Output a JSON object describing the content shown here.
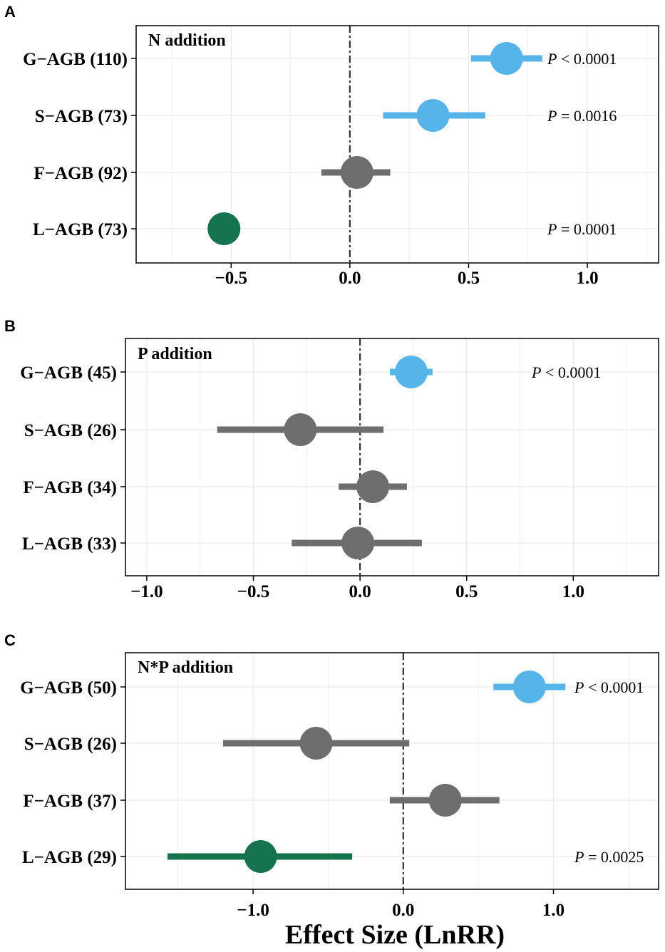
{
  "chart_data": [
    {
      "type": "forest",
      "panel_letter": "A",
      "title": "N addition",
      "xlim": [
        -0.9,
        1.3
      ],
      "xticks": [
        -0.5,
        0.0,
        0.5,
        1.0
      ],
      "xtick_labels": [
        "−0.5",
        "0.0",
        "0.5",
        "1.0"
      ],
      "reference_line": 0,
      "rows": [
        {
          "label": "G−AGB (110)",
          "est": 0.66,
          "lo": 0.51,
          "hi": 0.81,
          "color": "#56B4E9",
          "p_prefix": "P",
          "p_suffix": " < 0.0001"
        },
        {
          "label": "S−AGB (73)",
          "est": 0.35,
          "lo": 0.14,
          "hi": 0.57,
          "color": "#56B4E9",
          "p_prefix": "P",
          "p_suffix": " = 0.0016"
        },
        {
          "label": "F−AGB (92)",
          "est": 0.03,
          "lo": -0.12,
          "hi": 0.17,
          "color": "#6E6E6E",
          "p_prefix": "",
          "p_suffix": ""
        },
        {
          "label": "L−AGB (73)",
          "est": -0.53,
          "lo": -0.53,
          "hi": -0.53,
          "color": "#157350",
          "p_prefix": "P",
          "p_suffix": " = 0.0001"
        }
      ]
    },
    {
      "type": "forest",
      "panel_letter": "B",
      "title": "P addition",
      "xlim": [
        -1.1,
        1.4
      ],
      "xticks": [
        -1.0,
        -0.5,
        0.0,
        0.5,
        1.0
      ],
      "xtick_labels": [
        "−1.0",
        "−0.5",
        "0.0",
        "0.5",
        "1.0"
      ],
      "reference_line": 0,
      "rows": [
        {
          "label": "G−AGB (45)",
          "est": 0.24,
          "lo": 0.14,
          "hi": 0.34,
          "color": "#56B4E9",
          "p_prefix": "P",
          "p_suffix": " < 0.0001"
        },
        {
          "label": "S−AGB (26)",
          "est": -0.28,
          "lo": -0.67,
          "hi": 0.11,
          "color": "#6E6E6E",
          "p_prefix": "",
          "p_suffix": ""
        },
        {
          "label": "F−AGB (34)",
          "est": 0.06,
          "lo": -0.1,
          "hi": 0.22,
          "color": "#6E6E6E",
          "p_prefix": "",
          "p_suffix": ""
        },
        {
          "label": "L−AGB (33)",
          "est": -0.01,
          "lo": -0.32,
          "hi": 0.29,
          "color": "#6E6E6E",
          "p_prefix": "",
          "p_suffix": ""
        }
      ]
    },
    {
      "type": "forest",
      "panel_letter": "C",
      "title": "N*P addition",
      "xlim": [
        -1.85,
        1.7
      ],
      "xticks": [
        -1.0,
        0.0,
        1.0
      ],
      "xtick_labels": [
        "−1.0",
        "0.0",
        "1.0"
      ],
      "reference_line": 0,
      "xlabel": "Effect Size (LnRR)",
      "rows": [
        {
          "label": "G−AGB (50)",
          "est": 0.84,
          "lo": 0.6,
          "hi": 1.08,
          "color": "#56B4E9",
          "p_prefix": "P",
          "p_suffix": " < 0.0001"
        },
        {
          "label": "S−AGB (26)",
          "est": -0.58,
          "lo": -1.2,
          "hi": 0.04,
          "color": "#6E6E6E",
          "p_prefix": "",
          "p_suffix": ""
        },
        {
          "label": "F−AGB (37)",
          "est": 0.28,
          "lo": -0.09,
          "hi": 0.64,
          "color": "#6E6E6E",
          "p_prefix": "",
          "p_suffix": ""
        },
        {
          "label": "L−AGB (29)",
          "est": -0.95,
          "lo": -1.57,
          "hi": -0.34,
          "color": "#157350",
          "p_prefix": "P",
          "p_suffix": " = 0.0025"
        }
      ]
    }
  ]
}
